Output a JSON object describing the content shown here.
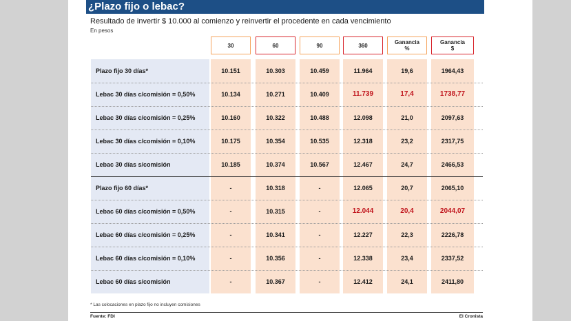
{
  "title": "¿Plazo fijo o lebac?",
  "subtitle": "Resultado de invertir $ 10.000 al comienzo y reinvertir el procedente en cada vencimiento",
  "units": "En pesos",
  "note": "* Las colocaciones en plazo fijo no incluyen comisiones",
  "source": "Fuente: FDI",
  "brand": "El Cronista",
  "colors": {
    "title_bar": "#1d4f86",
    "highlight": "#c0141c",
    "col_bg": "#fbe1cf",
    "label_bg": "#e4e9f4"
  },
  "chart_data": {
    "type": "table",
    "columns": [
      "30",
      "60",
      "90",
      "360",
      "Ganancia\n%",
      "Ganancia\n$"
    ],
    "rows": [
      {
        "label": "Plazo fijo 30 días*",
        "values": [
          "10.151",
          "10.303",
          "10.459",
          "11.964",
          "19,6",
          "1964,43"
        ],
        "highlight": false
      },
      {
        "label": "Lebac 30 días c/comisión = 0,50%",
        "values": [
          "10.134",
          "10.271",
          "10.409",
          "11.739",
          "17,4",
          "1738,77"
        ],
        "highlight": true
      },
      {
        "label": "Lebac 30 días c/comisión = 0,25%",
        "values": [
          "10.160",
          "10.322",
          "10.488",
          "12.098",
          "21,0",
          "2097,63"
        ],
        "highlight": false
      },
      {
        "label": "Lebac 30 días c/comisión = 0,10%",
        "values": [
          "10.175",
          "10.354",
          "10.535",
          "12.318",
          "23,2",
          "2317,75"
        ],
        "highlight": false
      },
      {
        "label": "Lebac 30 días s/comisión",
        "values": [
          "10.185",
          "10.374",
          "10.567",
          "12.467",
          "24,7",
          "2466,53"
        ],
        "highlight": false
      },
      {
        "label": "Plazo fijo 60 días*",
        "values": [
          "-",
          "10.318",
          "-",
          "12.065",
          "20,7",
          "2065,10"
        ],
        "highlight": false
      },
      {
        "label": "Lebac 60 días c/comisión = 0,50%",
        "values": [
          "-",
          "10.315",
          "-",
          "12.044",
          "20,4",
          "2044,07"
        ],
        "highlight": true
      },
      {
        "label": "Lebac 60 días c/comisión = 0,25%",
        "values": [
          "-",
          "10.341",
          "-",
          "12.227",
          "22,3",
          "2226,78"
        ],
        "highlight": false
      },
      {
        "label": "Lebac 60 días c/comisión = 0,10%",
        "values": [
          "-",
          "10.356",
          "-",
          "12.338",
          "23,4",
          "2337,52"
        ],
        "highlight": false
      },
      {
        "label": "Lebac 60 días s/comisión",
        "values": [
          "-",
          "10.367",
          "-",
          "12.412",
          "24,1",
          "2411,80"
        ],
        "highlight": false
      }
    ]
  }
}
